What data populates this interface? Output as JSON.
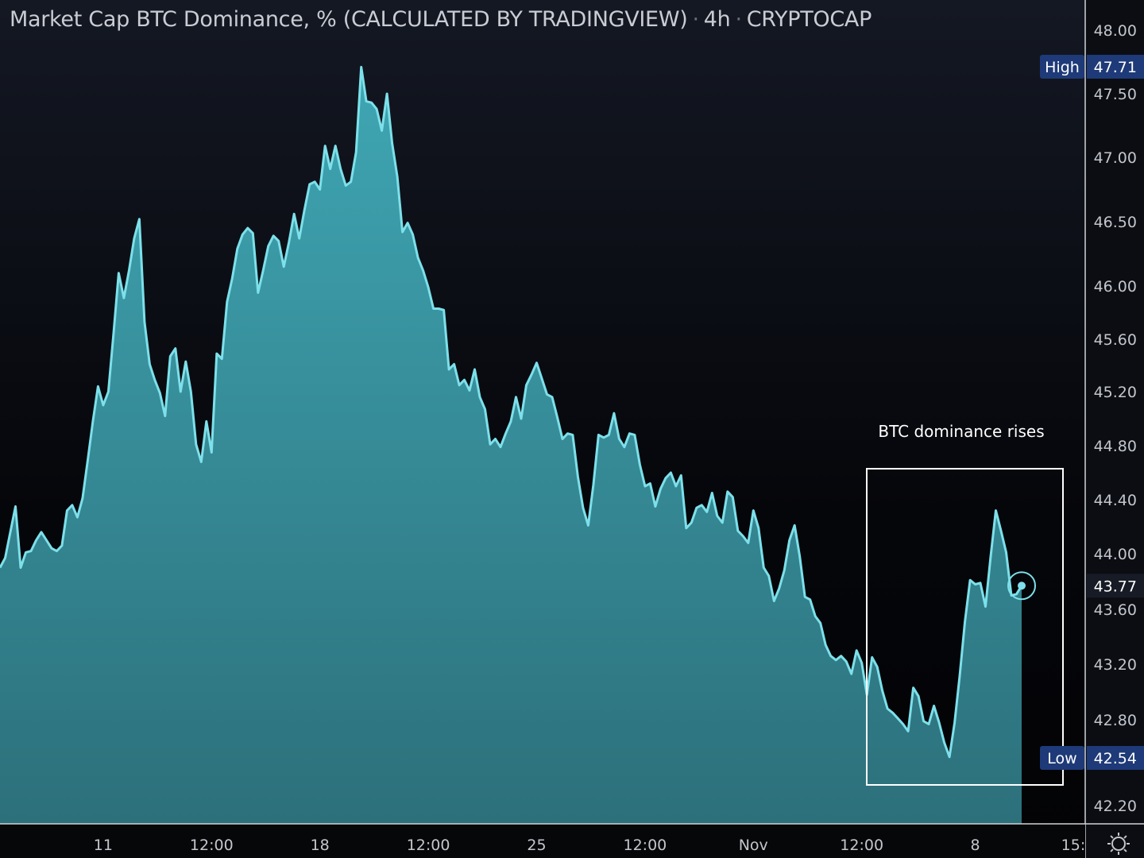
{
  "header": {
    "title": "Market Cap BTC Dominance, % (CALCULATED BY TRADINGVIEW)",
    "interval": "4h",
    "exchange": "CRYPTOCAP",
    "separator": "·"
  },
  "chart_data": {
    "type": "area",
    "title": "Market Cap BTC Dominance, % (CALCULATED BY TRADINGVIEW)",
    "interval_hours": 4,
    "xlabel": "",
    "ylabel": "%",
    "ylim": [
      42.1,
      48.1
    ],
    "grid": false,
    "y_ticks": [
      "48.00",
      "47.50",
      "47.00",
      "46.50",
      "46.00",
      "45.60",
      "45.20",
      "44.80",
      "44.40",
      "44.00",
      "43.60",
      "43.20",
      "42.80",
      "42.20"
    ],
    "x_ticks": [
      {
        "label": "11",
        "bar": 20
      },
      {
        "label": "12:00",
        "bar": 41
      },
      {
        "label": "18",
        "bar": 62
      },
      {
        "label": "12:00",
        "bar": 83
      },
      {
        "label": "25",
        "bar": 104
      },
      {
        "label": "12:00",
        "bar": 125
      },
      {
        "label": "Nov",
        "bar": 146
      },
      {
        "label": "12:00",
        "bar": 167
      },
      {
        "label": "8",
        "bar": 189
      },
      {
        "label": "15:",
        "bar": 208
      }
    ],
    "values": [
      43.9,
      43.97,
      44.16,
      44.35,
      43.9,
      44.01,
      44.02,
      44.1,
      44.16,
      44.1,
      44.04,
      44.02,
      44.06,
      44.32,
      44.36,
      44.27,
      44.41,
      44.69,
      44.98,
      45.24,
      45.1,
      45.2,
      45.64,
      46.1,
      45.91,
      46.12,
      46.37,
      46.52,
      45.73,
      45.41,
      45.29,
      45.19,
      45.02,
      45.47,
      45.53,
      45.2,
      45.43,
      45.2,
      44.81,
      44.68,
      44.98,
      44.75,
      45.49,
      45.45,
      45.88,
      46.06,
      46.29,
      46.4,
      46.45,
      46.41,
      45.95,
      46.12,
      46.31,
      46.39,
      46.35,
      46.15,
      46.34,
      46.56,
      46.37,
      46.59,
      46.79,
      46.81,
      46.75,
      47.09,
      46.91,
      47.09,
      46.91,
      46.78,
      46.81,
      47.04,
      47.71,
      47.44,
      47.43,
      47.38,
      47.21,
      47.5,
      47.11,
      46.85,
      46.42,
      46.49,
      46.4,
      46.22,
      46.12,
      45.99,
      45.83,
      45.83,
      45.82,
      45.37,
      45.41,
      45.25,
      45.29,
      45.21,
      45.37,
      45.16,
      45.07,
      44.81,
      44.85,
      44.79,
      44.89,
      44.98,
      45.16,
      45.0,
      45.25,
      45.33,
      45.42,
      45.3,
      45.18,
      45.16,
      45.01,
      44.85,
      44.89,
      44.88,
      44.57,
      44.34,
      44.21,
      44.51,
      44.88,
      44.86,
      44.88,
      45.04,
      44.85,
      44.79,
      44.89,
      44.88,
      44.66,
      44.5,
      44.52,
      44.35,
      44.48,
      44.56,
      44.6,
      44.5,
      44.58,
      44.19,
      44.23,
      44.34,
      44.36,
      44.31,
      44.45,
      44.28,
      44.23,
      44.46,
      44.42,
      44.17,
      44.13,
      44.08,
      44.32,
      44.19,
      43.9,
      43.84,
      43.66,
      43.75,
      43.88,
      44.1,
      44.21,
      43.98,
      43.69,
      43.67,
      43.55,
      43.5,
      43.34,
      43.26,
      43.23,
      43.26,
      43.22,
      43.13,
      43.3,
      43.21,
      42.98,
      43.25,
      43.18,
      43.01,
      42.88,
      42.85,
      42.81,
      42.77,
      42.72,
      43.03,
      42.97,
      42.79,
      42.77,
      42.9,
      42.78,
      42.64,
      42.54,
      42.78,
      43.12,
      43.51,
      43.81,
      43.78,
      43.79,
      43.62,
      43.98,
      44.32,
      44.17,
      44.01,
      43.7,
      43.71,
      43.77
    ],
    "high": {
      "label": "High",
      "value": "47.71"
    },
    "low": {
      "label": "Low",
      "value": "42.54"
    },
    "last": {
      "value": "43.77"
    },
    "annotation": {
      "text": "BTC dominance rises",
      "start_bar": 168,
      "end_bar": 206
    }
  },
  "colors": {
    "line": "#7de0ea",
    "fill_top": "#3fa6b3",
    "fill_bottom": "#2c707b",
    "tag": "#1e3a78",
    "axis": "#d0d3d8"
  }
}
